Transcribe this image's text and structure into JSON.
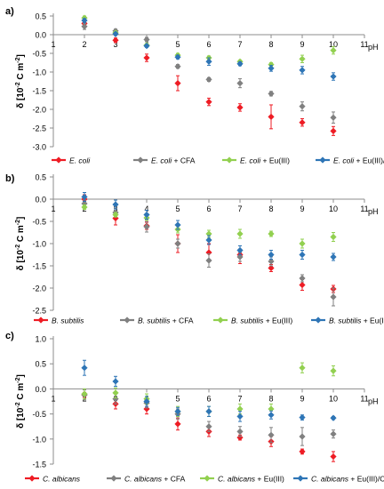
{
  "chart_data": [
    {
      "type": "scatter",
      "panel_label": "a)",
      "xlabel": "pH",
      "ylabel_parts": [
        "δ [10",
        "-2",
        " C m",
        "-2",
        "]"
      ],
      "xlim": [
        1,
        11
      ],
      "ylim": [
        -3.0,
        0.5
      ],
      "xticks": [
        1,
        2,
        3,
        4,
        5,
        6,
        7,
        8,
        9,
        10,
        11
      ],
      "yticks": [
        0.5,
        0.0,
        -0.5,
        -1.0,
        -1.5,
        -2.0,
        -2.5,
        -3.0
      ],
      "ytick_labels": [
        "0.5",
        "0.0",
        "-0.5",
        "-1.0",
        "-1.5",
        "-2.0",
        "-2.5",
        "-3.0"
      ],
      "series": [
        {
          "species": "E. coli",
          "suffix": "",
          "color": "#ee1c24",
          "x": [
            2,
            3,
            4,
            5,
            6,
            7,
            8,
            9,
            10
          ],
          "y": [
            0.3,
            -0.15,
            -0.62,
            -1.3,
            -1.8,
            -1.95,
            -2.2,
            -2.35,
            -2.58
          ],
          "err": [
            0.05,
            0.06,
            0.1,
            0.2,
            0.1,
            0.1,
            0.32,
            0.1,
            0.12
          ]
        },
        {
          "species": "E. coli",
          "suffix": " + CFA",
          "color": "#808080",
          "x": [
            2,
            3,
            4,
            5,
            6,
            7,
            8,
            9,
            10
          ],
          "y": [
            0.22,
            0.1,
            -0.13,
            -0.85,
            -1.2,
            -1.3,
            -1.58,
            -1.92,
            -2.22
          ],
          "err": [
            0.08,
            0.05,
            0.06,
            0.05,
            0.05,
            0.12,
            0.06,
            0.12,
            0.15
          ]
        },
        {
          "species": "E. coli",
          "suffix": " + Eu(III)",
          "color": "#92d050",
          "x": [
            2,
            3,
            4,
            5,
            6,
            7,
            8,
            9,
            10
          ],
          "y": [
            0.45,
            0.05,
            -0.28,
            -0.55,
            -0.62,
            -0.72,
            -0.8,
            -0.65,
            -0.42
          ],
          "err": [
            0.05,
            0.04,
            0.04,
            0.05,
            0.05,
            0.04,
            0.05,
            0.1,
            0.1
          ]
        },
        {
          "species": "E. coli",
          "suffix": " + Eu(III)/CFA",
          "color": "#2e75b6",
          "x": [
            2,
            3,
            4,
            5,
            6,
            7,
            8,
            9,
            10
          ],
          "y": [
            0.38,
            0.02,
            -0.3,
            -0.6,
            -0.72,
            -0.78,
            -0.9,
            -0.95,
            -1.12
          ],
          "err": [
            0.05,
            0.04,
            0.04,
            0.05,
            0.1,
            0.05,
            0.08,
            0.1,
            0.1
          ]
        }
      ]
    },
    {
      "type": "scatter",
      "panel_label": "b)",
      "xlabel": "pH",
      "ylabel_parts": [
        "δ [10",
        "-2",
        " C m",
        "-2",
        "]"
      ],
      "xlim": [
        1,
        11
      ],
      "ylim": [
        -2.5,
        0.5
      ],
      "xticks": [
        1,
        2,
        3,
        4,
        5,
        6,
        7,
        8,
        9,
        10,
        11
      ],
      "yticks": [
        0.5,
        0.0,
        -0.5,
        -1.0,
        -1.5,
        -2.0,
        -2.5
      ],
      "ytick_labels": [
        "0.5",
        "0.0",
        "-0.5",
        "-1.0",
        "-1.5",
        "-2.0",
        "-2.5"
      ],
      "series": [
        {
          "species": "B. subtilis",
          "suffix": "",
          "color": "#ee1c24",
          "x": [
            2,
            3,
            4,
            5,
            6,
            7,
            8,
            9,
            10
          ],
          "y": [
            0.0,
            -0.43,
            -0.6,
            -1.0,
            -1.2,
            -1.25,
            -1.55,
            -1.93,
            -2.02
          ],
          "err": [
            0.1,
            0.15,
            0.08,
            0.2,
            0.2,
            0.2,
            0.08,
            0.12,
            0.08
          ]
        },
        {
          "species": "B. subtilis",
          "suffix": " + CFA",
          "color": "#808080",
          "x": [
            2,
            3,
            4,
            5,
            6,
            7,
            8,
            9,
            10
          ],
          "y": [
            -0.1,
            -0.3,
            -0.62,
            -1.0,
            -1.38,
            -1.3,
            -1.4,
            -1.78,
            -2.2
          ],
          "err": [
            0.08,
            0.1,
            0.12,
            0.1,
            0.15,
            0.1,
            0.1,
            0.08,
            0.2
          ]
        },
        {
          "species": "B. subtilis",
          "suffix": " + Eu(III)",
          "color": "#92d050",
          "x": [
            2,
            3,
            4,
            5,
            6,
            7,
            8,
            9,
            10
          ],
          "y": [
            -0.18,
            -0.35,
            -0.42,
            -0.68,
            -0.78,
            -0.78,
            -0.78,
            -1.0,
            -0.85
          ],
          "err": [
            0.05,
            0.05,
            0.05,
            0.08,
            0.08,
            0.1,
            0.06,
            0.1,
            0.1
          ]
        },
        {
          "species": "B. subtilis",
          "suffix": " + Eu(III)/CFA",
          "color": "#2e75b6",
          "x": [
            2,
            3,
            4,
            5,
            6,
            7,
            8,
            9,
            10
          ],
          "y": [
            0.05,
            -0.12,
            -0.35,
            -0.58,
            -0.92,
            -1.15,
            -1.25,
            -1.25,
            -1.3
          ],
          "err": [
            0.1,
            0.1,
            0.1,
            0.1,
            0.1,
            0.1,
            0.1,
            0.1,
            0.08
          ]
        }
      ]
    },
    {
      "type": "scatter",
      "panel_label": "c)",
      "xlabel": "pH",
      "ylabel_parts": [
        "δ [10",
        "-2",
        " C m",
        "-2",
        "]"
      ],
      "xlim": [
        1,
        11
      ],
      "ylim": [
        -1.5,
        1.0
      ],
      "xticks": [
        1,
        2,
        3,
        4,
        5,
        6,
        7,
        8,
        9,
        10,
        11
      ],
      "yticks": [
        1.0,
        0.5,
        0.0,
        -0.5,
        -1.0,
        -1.5
      ],
      "ytick_labels": [
        "1.0",
        "0.5",
        "0.0",
        "-0.5",
        "-1.0",
        "-1.5"
      ],
      "series": [
        {
          "species": "C. albicans",
          "suffix": "",
          "color": "#ee1c24",
          "x": [
            2,
            3,
            4,
            5,
            6,
            7,
            8,
            9,
            10
          ],
          "y": [
            -0.12,
            -0.3,
            -0.4,
            -0.7,
            -0.85,
            -0.97,
            -1.05,
            -1.25,
            -1.35
          ],
          "err": [
            0.05,
            0.1,
            0.1,
            0.12,
            0.1,
            0.05,
            0.1,
            0.05,
            0.1
          ]
        },
        {
          "species": "C. albicans",
          "suffix": " + CFA",
          "color": "#808080",
          "x": [
            2,
            3,
            4,
            5,
            6,
            7,
            8,
            9,
            10
          ],
          "y": [
            -0.12,
            -0.2,
            -0.28,
            -0.5,
            -0.75,
            -0.85,
            -0.92,
            -0.95,
            -0.9
          ],
          "err": [
            0.1,
            0.1,
            0.1,
            0.1,
            0.1,
            0.1,
            0.15,
            0.18,
            0.08
          ]
        },
        {
          "species": "C. albicans",
          "suffix": " + Eu(III)",
          "color": "#92d050",
          "x": [
            2,
            3,
            4,
            5,
            6,
            7,
            8,
            9,
            10
          ],
          "y": [
            -0.1,
            -0.08,
            -0.2,
            -0.45,
            -0.45,
            -0.4,
            -0.4,
            0.42,
            0.36
          ],
          "err": [
            0.1,
            0.1,
            0.1,
            0.1,
            0.1,
            0.1,
            0.1,
            0.1,
            0.1
          ]
        },
        {
          "species": "C. albicans",
          "suffix": " + Eu(III)/CFA",
          "color": "#2e75b6",
          "x": [
            2,
            3,
            4,
            5,
            6,
            7,
            8,
            9,
            10
          ],
          "y": [
            0.42,
            0.15,
            -0.25,
            -0.45,
            -0.45,
            -0.55,
            -0.52,
            -0.57,
            -0.58
          ],
          "err": [
            0.15,
            0.1,
            0.1,
            0.08,
            0.1,
            0.1,
            0.08,
            0.05,
            0.03
          ]
        }
      ]
    }
  ]
}
